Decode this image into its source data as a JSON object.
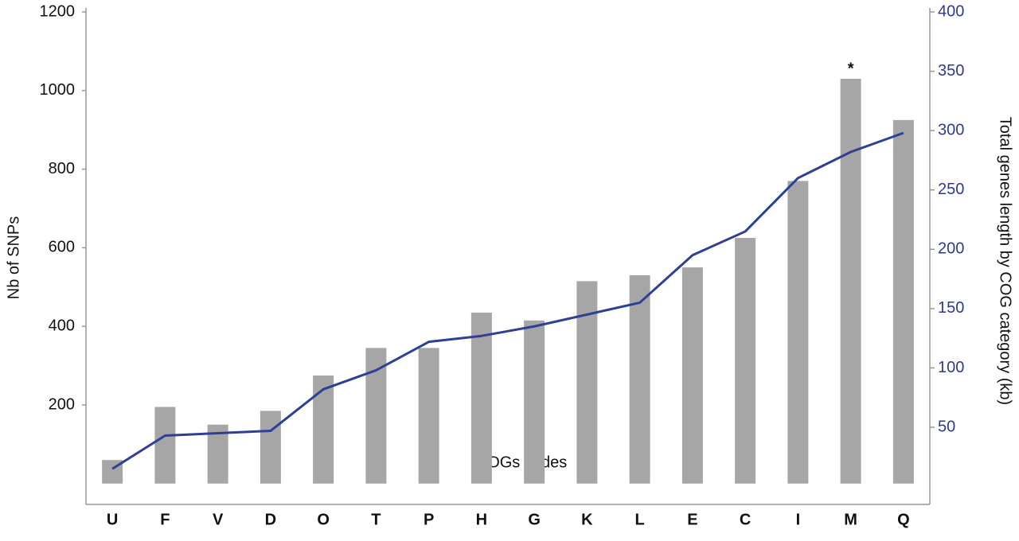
{
  "chart_data": {
    "type": "bar_line",
    "xlabel": "COGs codes",
    "ylabel": "Nb of SNPs",
    "y2label": "Total genes length by COG category (kb)",
    "categories": [
      "U",
      "F",
      "V",
      "D",
      "O",
      "T",
      "P",
      "H",
      "G",
      "K",
      "L",
      "E",
      "C",
      "I",
      "M",
      "Q"
    ],
    "series": [
      {
        "name": "Nb of SNPs",
        "type": "bar",
        "color": "#a6a6a6",
        "values": [
          60,
          195,
          150,
          185,
          275,
          345,
          345,
          435,
          415,
          515,
          530,
          550,
          625,
          770,
          1030,
          925
        ]
      },
      {
        "name": "Total genes length by COG category (kb)",
        "type": "line",
        "axis": "y2",
        "color": "#2e3f94",
        "values": [
          15,
          43,
          45,
          47,
          82,
          98,
          122,
          127,
          135,
          145,
          155,
          195,
          215,
          260,
          282,
          298
        ]
      }
    ],
    "ylim": [
      -53,
      1200
    ],
    "yticks": [
      200,
      400,
      600,
      800,
      1000,
      1200
    ],
    "y2lim": [
      -15,
      400
    ],
    "y2ticks": [
      50,
      100,
      150,
      200,
      250,
      300,
      350,
      400
    ],
    "y2color": "#2e3a8c",
    "annotations": [
      {
        "text": "*",
        "category": "M"
      }
    ]
  }
}
